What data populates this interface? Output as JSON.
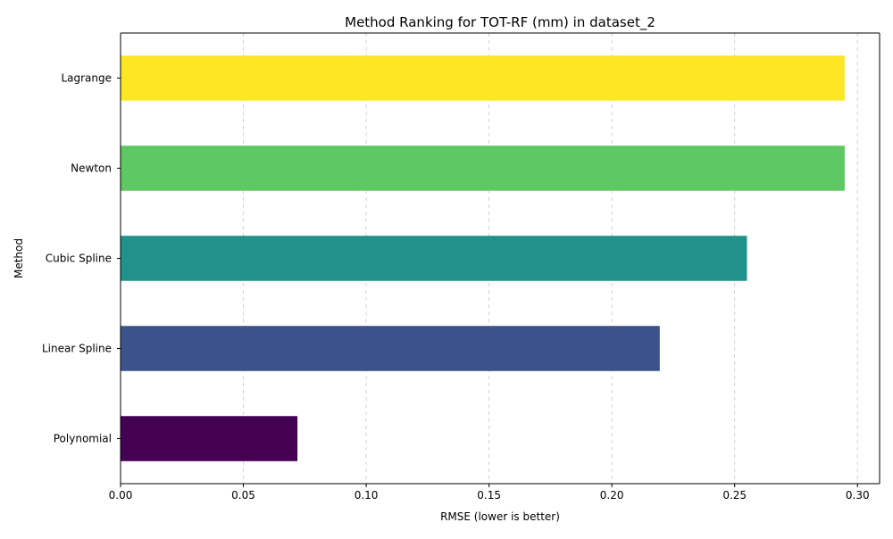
{
  "chart_data": {
    "type": "bar",
    "orientation": "horizontal",
    "title": "Method Ranking for TOT-RF (mm) in dataset_2",
    "xlabel": "RMSE (lower is better)",
    "ylabel": "Method",
    "categories": [
      "Polynomial",
      "Linear Spline",
      "Cubic Spline",
      "Newton",
      "Lagrange"
    ],
    "values": [
      0.072,
      0.2195,
      0.255,
      0.2948,
      0.2948
    ],
    "colors": [
      "#440154",
      "#3b528b",
      "#21918c",
      "#5ec962",
      "#fde725"
    ],
    "xlim": [
      0,
      0.309
    ],
    "xticks": [
      0.0,
      0.05,
      0.1,
      0.15,
      0.2,
      0.25,
      0.3
    ],
    "xtick_labels": [
      "0.00",
      "0.05",
      "0.10",
      "0.15",
      "0.20",
      "0.25",
      "0.30"
    ],
    "grid": "x-dashed",
    "legend": "none"
  }
}
